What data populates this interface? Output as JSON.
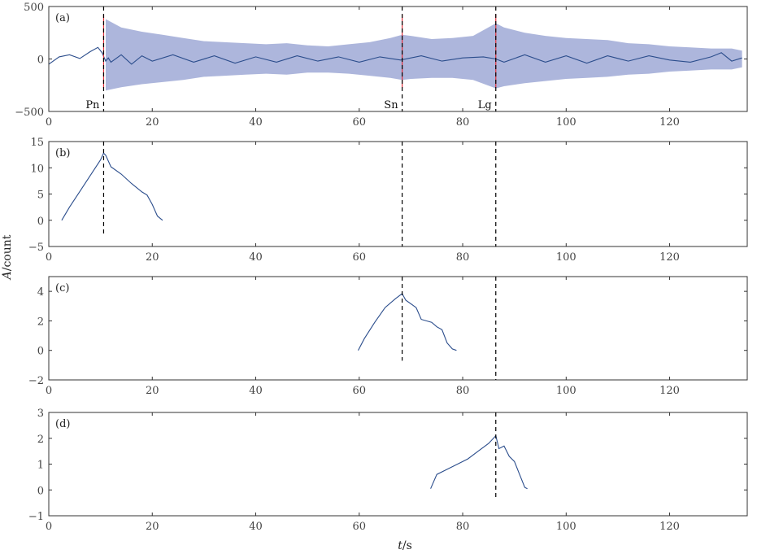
{
  "figure": {
    "ylabel_var": "A",
    "ylabel_unit": "/count",
    "xlabel_var": "t",
    "xlabel_unit": "/s"
  },
  "colors": {
    "trace": "#2b4d8c",
    "envelope": "#9fa9d6",
    "pick": "#e0303c",
    "marker_line": "#000000",
    "frame": "#333333"
  },
  "chart_data": [
    {
      "type": "line",
      "panel_label": "(a)",
      "xlim": [
        0,
        135
      ],
      "ylim": [
        -500,
        500
      ],
      "xticks": [
        0,
        20,
        40,
        60,
        80,
        100,
        120
      ],
      "yticks": [
        -500,
        0,
        500
      ],
      "series": [
        {
          "style": "trace",
          "x": [
            0,
            2,
            4,
            6,
            8,
            9.5,
            10.3,
            11,
            11.5,
            12,
            14,
            16,
            18,
            20,
            24,
            28,
            32,
            36,
            40,
            44,
            48,
            52,
            56,
            60,
            64,
            68,
            72,
            76,
            80,
            84,
            86.4,
            88,
            92,
            96,
            100,
            104,
            108,
            112,
            116,
            120,
            124,
            128,
            130,
            132,
            134
          ],
          "y": [
            -50,
            20,
            40,
            5,
            70,
            110,
            60,
            -20,
            10,
            -30,
            40,
            -50,
            30,
            -20,
            40,
            -30,
            30,
            -40,
            20,
            -30,
            30,
            -20,
            20,
            -30,
            20,
            -10,
            30,
            -20,
            10,
            20,
            0,
            -30,
            40,
            -30,
            30,
            -40,
            30,
            -20,
            30,
            -10,
            -30,
            20,
            60,
            -20,
            10
          ]
        }
      ],
      "envelope": {
        "x": [
          11,
          14,
          18,
          22,
          26,
          30,
          34,
          38,
          42,
          46,
          50,
          54,
          58,
          62,
          66,
          68.3,
          70,
          74,
          78,
          82,
          86.4,
          88,
          92,
          96,
          100,
          104,
          108,
          112,
          116,
          120,
          124,
          128,
          132,
          134
        ],
        "upper": [
          380,
          300,
          260,
          230,
          200,
          170,
          160,
          150,
          140,
          150,
          130,
          120,
          140,
          160,
          200,
          230,
          220,
          190,
          200,
          220,
          340,
          300,
          250,
          220,
          200,
          190,
          180,
          150,
          140,
          120,
          110,
          100,
          100,
          80
        ],
        "lower": [
          -300,
          -270,
          -240,
          -220,
          -200,
          -170,
          -160,
          -150,
          -140,
          -150,
          -130,
          -130,
          -140,
          -160,
          -180,
          -200,
          -190,
          -180,
          -180,
          -200,
          -280,
          -260,
          -230,
          -210,
          -190,
          -180,
          -170,
          -150,
          -140,
          -120,
          -110,
          -100,
          -100,
          -80
        ]
      },
      "picks": [
        {
          "label": "Pn",
          "x": 10.6
        },
        {
          "label": "Sn",
          "x": 68.3
        },
        {
          "label": "Lg",
          "x": 86.4
        }
      ]
    },
    {
      "type": "line",
      "panel_label": "(b)",
      "xlim": [
        0,
        135
      ],
      "ylim": [
        -5,
        15
      ],
      "xticks": [
        0,
        20,
        40,
        60,
        80,
        100,
        120
      ],
      "yticks": [
        -5,
        0,
        5,
        10,
        15
      ],
      "series": [
        {
          "style": "trace",
          "x": [
            2.5,
            4,
            6,
            8,
            10,
            10.6,
            11,
            12,
            14,
            16,
            18,
            19,
            20,
            21,
            22
          ],
          "y": [
            0,
            2.5,
            5.5,
            8.5,
            11.5,
            12.8,
            12.4,
            10.2,
            8.8,
            7.0,
            5.4,
            4.8,
            3.0,
            0.8,
            0
          ]
        }
      ],
      "marker_ylim": [
        -2.8,
        15
      ]
    },
    {
      "type": "line",
      "panel_label": "(c)",
      "xlim": [
        0,
        135
      ],
      "ylim": [
        -2,
        5
      ],
      "xticks": [
        0,
        20,
        40,
        60,
        80,
        100,
        120
      ],
      "yticks": [
        -2,
        0,
        2,
        4
      ],
      "series": [
        {
          "style": "trace",
          "x": [
            59.8,
            61,
            63,
            65,
            67,
            68.3,
            69,
            71,
            72,
            74,
            75,
            76,
            77,
            78,
            78.8
          ],
          "y": [
            0,
            0.8,
            1.9,
            2.9,
            3.5,
            3.85,
            3.4,
            2.9,
            2.1,
            1.9,
            1.6,
            1.4,
            0.5,
            0.1,
            0
          ]
        }
      ],
      "marker_ylim": [
        -0.7,
        5
      ]
    },
    {
      "type": "line",
      "panel_label": "(d)",
      "xlim": [
        0,
        135
      ],
      "ylim": [
        -1,
        3
      ],
      "xticks": [
        0,
        20,
        40,
        60,
        80,
        100,
        120
      ],
      "yticks": [
        -1,
        0,
        1,
        2,
        3
      ],
      "series": [
        {
          "style": "trace",
          "x": [
            73.8,
            75,
            77,
            79,
            81,
            83,
            85,
            86.4,
            87,
            88,
            89,
            90,
            91,
            92,
            92.5
          ],
          "y": [
            0.05,
            0.6,
            0.8,
            1.0,
            1.2,
            1.5,
            1.8,
            2.1,
            1.6,
            1.7,
            1.3,
            1.1,
            0.6,
            0.1,
            0.05
          ]
        }
      ],
      "marker_ylim": [
        -0.4,
        3
      ]
    }
  ]
}
